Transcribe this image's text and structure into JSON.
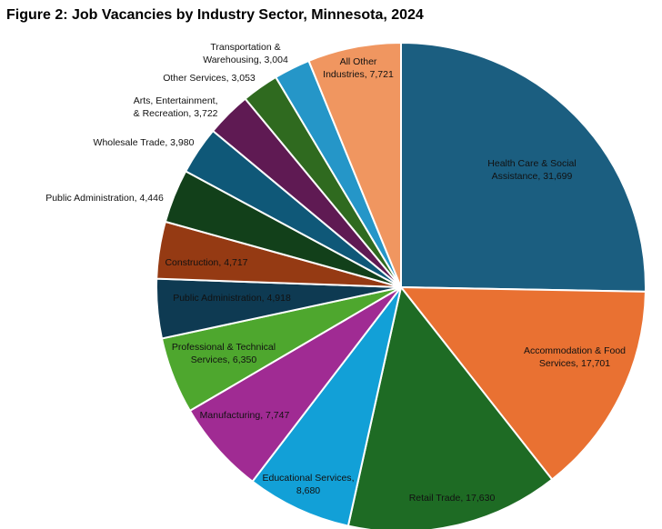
{
  "chart_data": {
    "type": "pie",
    "title": "Figure 2: Job Vacancies by Industry Sector, Minnesota, 2024",
    "categories": [
      "Health Care & Social Assistance",
      "Accommodation & Food Services",
      "Retail Trade",
      "Educational Services",
      "Manufacturing",
      "Professional & Technical Services",
      "Public Administration",
      "Construction",
      "Public Administration",
      "Wholesale Trade",
      "Arts, Entertainment, & Recreation",
      "Other Services",
      "Transportation & Warehousing",
      "All Other Industries"
    ],
    "values": [
      31699,
      17701,
      17630,
      8680,
      7747,
      6350,
      4918,
      4717,
      4446,
      3980,
      3722,
      3053,
      3004,
      7721
    ],
    "value_labels": [
      "31,699",
      "17,701",
      "17,630",
      "8,680",
      "7,747",
      "6,350",
      "4,918",
      "4,717",
      "4,446",
      "3,980",
      "3,722",
      "3,053",
      "3,004",
      "7,721"
    ],
    "colors": [
      "#1b5e80",
      "#e97132",
      "#1e6b24",
      "#12a0d7",
      "#a02b93",
      "#4ea72e",
      "#0e3a52",
      "#953a13",
      "#12401a",
      "#0f5878",
      "#5f1a53",
      "#2f6a1f",
      "#2596c8",
      "#f09660"
    ]
  }
}
